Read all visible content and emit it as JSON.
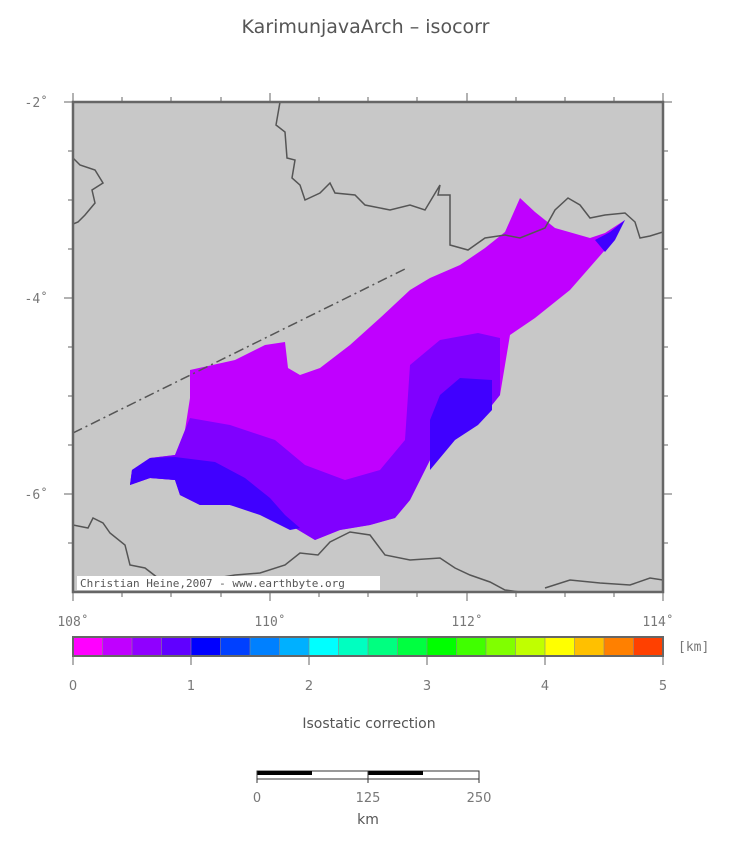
{
  "map": {
    "title": "KarimunjavaArch – isocorr",
    "lat_labels": [
      "-2˚",
      "-4˚",
      "-6˚"
    ],
    "lon_labels": [
      "108˚",
      "110˚",
      "112˚",
      "114˚"
    ],
    "credit": "Christian Heine,2007 - www.earthbyte.org",
    "land_color": "#c8c8c8",
    "coast_color": "#555555"
  },
  "legend": {
    "title": "Isostatic correction",
    "unit": "[km]",
    "tick_labels": [
      "0",
      "1",
      "2",
      "3",
      "4",
      "5"
    ],
    "colors": [
      "#ff00ff",
      "#c000ff",
      "#9000ff",
      "#6000ff",
      "#0000ff",
      "#0040ff",
      "#0080ff",
      "#00b0ff",
      "#00ffff",
      "#00ffc0",
      "#00ff80",
      "#00ff40",
      "#00ff00",
      "#40ff00",
      "#80ff00",
      "#c0ff00",
      "#ffff00",
      "#ffc000",
      "#ff8000",
      "#ff4000"
    ]
  },
  "scale_bar": {
    "labels": [
      "0",
      "125",
      "250"
    ],
    "unit": "km"
  },
  "anomaly_colors": {
    "outer": "#c000ff",
    "middle": "#8000ff",
    "inner": "#4000ff"
  }
}
